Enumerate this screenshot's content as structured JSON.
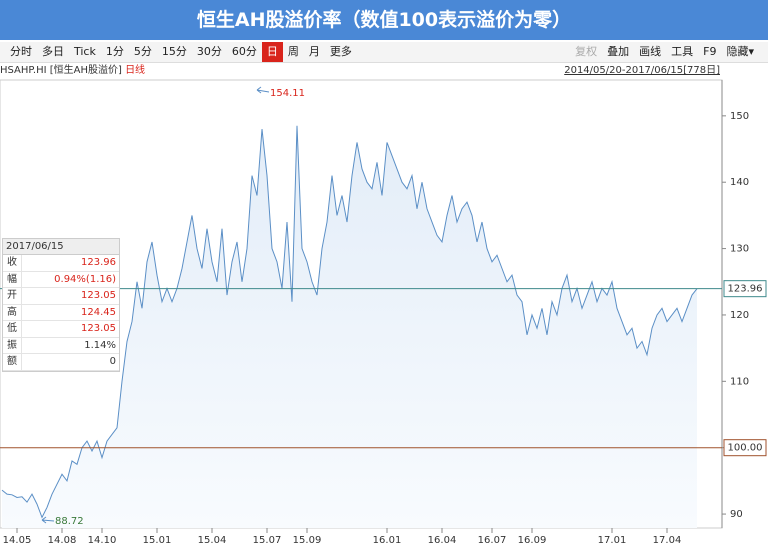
{
  "header": {
    "title": "恒生AH股溢价率（数值100表示溢价为零）"
  },
  "toolbar": {
    "left": [
      "分时",
      "多日",
      "Tick",
      "1分",
      "5分",
      "15分",
      "30分",
      "60分",
      "日",
      "周",
      "月",
      "更多"
    ],
    "selected": 8,
    "right": [
      "复权",
      "叠加",
      "画线",
      "工具",
      "F9",
      "隐藏▾"
    ],
    "disabled": [
      0
    ]
  },
  "infobar": {
    "symbol": "HSAHP.HI [恒生AH股溢价]",
    "period": "日线",
    "range": "2014/05/20-2017/06/15[778日]"
  },
  "info_panel": {
    "date": "2017/06/15",
    "rows": [
      [
        "收",
        "123.96",
        "#d9241b"
      ],
      [
        "幅",
        "0.94%(1.16)",
        "#d9241b"
      ],
      [
        "开",
        "123.05",
        "#d9241b"
      ],
      [
        "高",
        "124.45",
        "#d9241b"
      ],
      [
        "低",
        "123.05",
        "#d9241b"
      ],
      [
        "振",
        "1.14%",
        "#333333"
      ],
      [
        "额",
        "0",
        "#333333"
      ]
    ]
  },
  "chart_data": {
    "type": "area",
    "color": "#5b8fc6",
    "categories": [
      null,
      null,
      null,
      "14.05",
      null,
      null,
      null,
      null,
      null,
      null,
      null,
      null,
      "14.08",
      null,
      null,
      null,
      null,
      null,
      null,
      null,
      "14.10",
      null,
      null,
      null,
      null,
      null,
      null,
      null,
      null,
      null,
      null,
      "15.01",
      null,
      null,
      null,
      null,
      null,
      null,
      null,
      null,
      null,
      null,
      "15.04",
      null,
      null,
      null,
      null,
      null,
      null,
      null,
      null,
      null,
      null,
      "15.07",
      null,
      null,
      null,
      null,
      null,
      null,
      null,
      "15.09",
      null,
      null,
      null,
      null,
      null,
      null,
      null,
      null,
      null,
      null,
      null,
      null,
      null,
      null,
      null,
      "16.01",
      null,
      null,
      null,
      null,
      null,
      null,
      null,
      null,
      null,
      null,
      "16.04",
      null,
      null,
      null,
      null,
      null,
      null,
      null,
      null,
      null,
      "16.07",
      null,
      null,
      null,
      null,
      null,
      null,
      null,
      "16.09",
      null,
      null,
      null,
      null,
      null,
      null,
      null,
      null,
      null,
      null,
      null,
      null,
      null,
      null,
      null,
      "17.01",
      null,
      null,
      null,
      null,
      null,
      null,
      null,
      null,
      null,
      null,
      "17.04",
      null,
      null,
      null,
      null,
      null,
      null
    ],
    "values": [
      93.6,
      93,
      92.9,
      92.5,
      92.6,
      91.8,
      93,
      91.5,
      89.5,
      91,
      93,
      94.5,
      96,
      95,
      98,
      97.5,
      100,
      101,
      99.5,
      101,
      98.5,
      101,
      102,
      103,
      110,
      116,
      119,
      125,
      121,
      128,
      131,
      126,
      122,
      124,
      122,
      124,
      127,
      131,
      135,
      130,
      127,
      133,
      128,
      125,
      133,
      123,
      128,
      131,
      125,
      130,
      141,
      138,
      148,
      141,
      130,
      128,
      124,
      134,
      122,
      148.5,
      130,
      128,
      125,
      123,
      130,
      134,
      141,
      135,
      138,
      134,
      141,
      146,
      142,
      140,
      139,
      143,
      138,
      146,
      144,
      142,
      140,
      139,
      141,
      136,
      140,
      136,
      134,
      132,
      131,
      135,
      138,
      134,
      136,
      137,
      135,
      131,
      134,
      130,
      128,
      129,
      127,
      125,
      126,
      123,
      122,
      117,
      120,
      118,
      121,
      117,
      122,
      120,
      124,
      126,
      122,
      124,
      121,
      123,
      125,
      122,
      124,
      123,
      125,
      121,
      119,
      117,
      118,
      115,
      116,
      114,
      118,
      120,
      121,
      119,
      120,
      121,
      119,
      121,
      123,
      123.96
    ],
    "ylim": [
      87.9,
      155.4
    ],
    "yticks": [
      90,
      100,
      110,
      120,
      130,
      140,
      150
    ],
    "ref_lines": [
      {
        "value": 123.96,
        "color": "#3f8a8c"
      },
      {
        "value": 100,
        "label": "100.00",
        "color": "#a0522d"
      }
    ],
    "max_label": 154.11,
    "min_label": 88.72,
    "max_index": 53,
    "min_index": 8
  }
}
